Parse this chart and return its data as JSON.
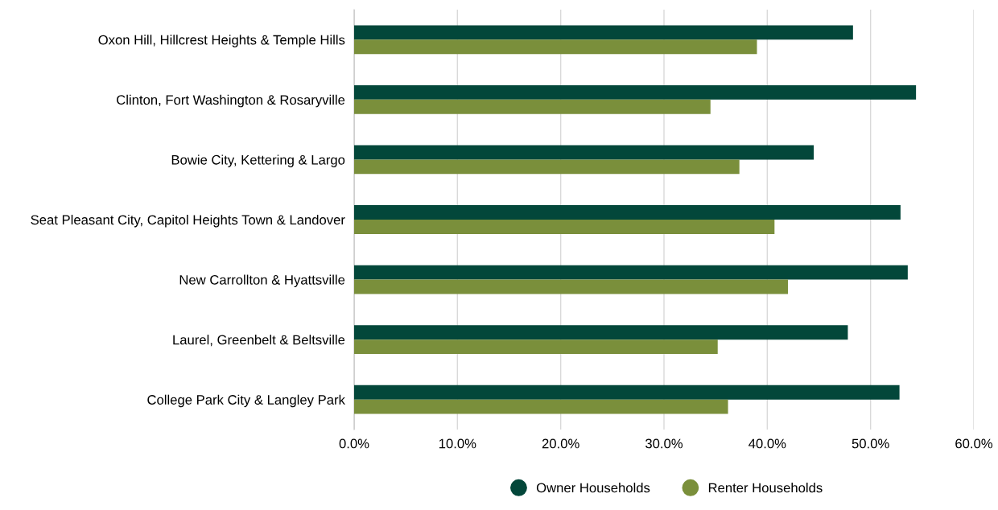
{
  "chart_data": {
    "type": "bar",
    "orientation": "horizontal",
    "categories": [
      "Oxon Hill, Hillcrest Heights & Temple Hills",
      "Clinton, Fort Washington & Rosaryville",
      "Bowie City, Kettering & Largo",
      "Seat Pleasant City, Capitol Heights Town & Landover",
      "New Carrollton & Hyattsville",
      "Laurel, Greenbelt & Beltsville",
      "College Park City & Langley Park"
    ],
    "series": [
      {
        "name": "Owner Households",
        "color": "#03473a",
        "values": [
          48.3,
          54.4,
          44.5,
          52.9,
          53.6,
          47.8,
          52.8
        ]
      },
      {
        "name": "Renter Households",
        "color": "#7a8f3b",
        "values": [
          39.0,
          34.5,
          37.3,
          40.7,
          42.0,
          35.2,
          36.2
        ]
      }
    ],
    "xlim": [
      0,
      60
    ],
    "xticks": [
      {
        "value": 0,
        "label": "0.0%"
      },
      {
        "value": 10,
        "label": "10.0%"
      },
      {
        "value": 20,
        "label": "20.0%"
      },
      {
        "value": 30,
        "label": "30.0%"
      },
      {
        "value": 40,
        "label": "40.0%"
      },
      {
        "value": 50,
        "label": "50.0%"
      },
      {
        "value": 60,
        "label": "60.0%"
      }
    ],
    "grid": "x",
    "legend": "bottom"
  }
}
